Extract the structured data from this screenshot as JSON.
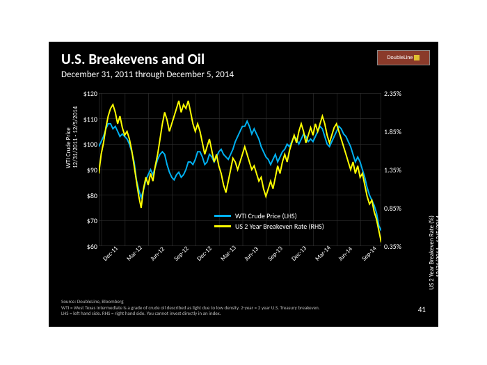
{
  "title": "U.S. Breakevens and Oil",
  "subtitle": "December 31, 2011 through December 5, 2014",
  "logo": {
    "text": "DoubleLine",
    "sub": "FUNDS"
  },
  "page_number": "41",
  "footer": {
    "source": "Source: DoubleLine, Bloomberg",
    "note1": "WTI = West Texas Intermediate is a grade of crude oil described as light due to low density. 2-year = 2 year U.S. Treasury breakeven.",
    "note2": "LHS = left hand side. RHS = right hand side. You cannot invest directly in an index."
  },
  "chart": {
    "type": "line",
    "background_color": "#000000",
    "grid_color": "#333333",
    "title_fontsize": 21,
    "subtitle_fontsize": 13,
    "axis_label_fontsize": 9,
    "tick_fontsize": 10,
    "x": {
      "ticks": [
        "Dec-11",
        "Mar-12",
        "Jun-12",
        "Sep-12",
        "Dec-12",
        "Mar-13",
        "Jun-13",
        "Sep-13",
        "Dec-13",
        "Mar-14",
        "Jun-14",
        "Sep-14"
      ],
      "label": ""
    },
    "y_left": {
      "label": "WTI Crude Price",
      "sublabel": "12/31/2011 - 12/5/2014",
      "min": 60,
      "max": 120,
      "ticks": [
        60,
        70,
        80,
        90,
        100,
        110,
        120
      ],
      "tick_prefix": "$",
      "color": "#00b0f0"
    },
    "y_right": {
      "label": "US 2 Year Breakeven Rate (%)",
      "sublabel": "12/31/2011 - 12/5/2014",
      "min": 0.35,
      "max": 2.35,
      "ticks": [
        0.35,
        0.85,
        1.35,
        1.85,
        2.35
      ],
      "tick_suffix": "%",
      "color": "#ffff00"
    },
    "series": [
      {
        "name": "WTI Crude Price (LHS)",
        "axis": "left",
        "color": "#00b0f0",
        "line_width": 2,
        "data": [
          [
            0,
            99
          ],
          [
            1,
            101
          ],
          [
            2,
            103
          ],
          [
            3,
            106
          ],
          [
            4,
            108
          ],
          [
            5,
            108
          ],
          [
            6,
            106
          ],
          [
            7,
            107
          ],
          [
            8,
            105
          ],
          [
            9,
            103
          ],
          [
            10,
            104
          ],
          [
            11,
            103
          ],
          [
            12,
            102
          ],
          [
            13,
            100
          ],
          [
            14,
            97
          ],
          [
            15,
            93
          ],
          [
            16,
            86
          ],
          [
            17,
            82
          ],
          [
            18,
            79
          ],
          [
            19,
            82
          ],
          [
            20,
            86
          ],
          [
            21,
            88
          ],
          [
            22,
            90
          ],
          [
            23,
            88
          ],
          [
            24,
            91
          ],
          [
            25,
            94
          ],
          [
            26,
            96
          ],
          [
            27,
            97
          ],
          [
            28,
            96
          ],
          [
            29,
            92
          ],
          [
            30,
            89
          ],
          [
            31,
            87
          ],
          [
            32,
            86
          ],
          [
            33,
            88
          ],
          [
            34,
            89
          ],
          [
            35,
            87
          ],
          [
            36,
            88
          ],
          [
            37,
            90
          ],
          [
            38,
            93
          ],
          [
            39,
            93
          ],
          [
            40,
            92
          ],
          [
            41,
            94
          ],
          [
            42,
            97
          ],
          [
            43,
            97
          ],
          [
            44,
            95
          ],
          [
            45,
            92
          ],
          [
            46,
            93
          ],
          [
            47,
            96
          ],
          [
            48,
            95
          ],
          [
            49,
            93
          ],
          [
            50,
            95
          ],
          [
            51,
            97
          ],
          [
            52,
            98
          ],
          [
            53,
            96
          ],
          [
            54,
            95
          ],
          [
            55,
            94
          ],
          [
            56,
            96
          ],
          [
            57,
            98
          ],
          [
            58,
            101
          ],
          [
            59,
            103
          ],
          [
            60,
            105
          ],
          [
            61,
            107
          ],
          [
            62,
            107
          ],
          [
            63,
            109
          ],
          [
            64,
            107
          ],
          [
            65,
            104
          ],
          [
            66,
            106
          ],
          [
            67,
            104
          ],
          [
            68,
            102
          ],
          [
            69,
            99
          ],
          [
            70,
            97
          ],
          [
            71,
            95
          ],
          [
            72,
            94
          ],
          [
            73,
            92
          ],
          [
            74,
            94
          ],
          [
            75,
            96
          ],
          [
            76,
            93
          ],
          [
            77,
            95
          ],
          [
            78,
            97
          ],
          [
            79,
            98
          ],
          [
            80,
            100
          ],
          [
            81,
            99
          ],
          [
            82,
            101
          ],
          [
            83,
            103
          ],
          [
            84,
            102
          ],
          [
            85,
            100
          ],
          [
            86,
            102
          ],
          [
            87,
            104
          ],
          [
            88,
            103
          ],
          [
            89,
            101
          ],
          [
            90,
            102
          ],
          [
            91,
            101
          ],
          [
            92,
            103
          ],
          [
            93,
            105
          ],
          [
            94,
            107
          ],
          [
            95,
            106
          ],
          [
            96,
            103
          ],
          [
            97,
            100
          ],
          [
            98,
            99
          ],
          [
            99,
            101
          ],
          [
            100,
            103
          ],
          [
            101,
            105
          ],
          [
            102,
            107
          ],
          [
            103,
            106
          ],
          [
            104,
            104
          ],
          [
            105,
            103
          ],
          [
            106,
            101
          ],
          [
            107,
            99
          ],
          [
            108,
            96
          ],
          [
            109,
            93
          ],
          [
            110,
            95
          ],
          [
            111,
            93
          ],
          [
            112,
            90
          ],
          [
            113,
            87
          ],
          [
            114,
            83
          ],
          [
            115,
            80
          ],
          [
            116,
            78
          ],
          [
            117,
            76
          ],
          [
            118,
            73
          ],
          [
            119,
            68
          ],
          [
            120,
            66
          ]
        ]
      },
      {
        "name": "US 2 Year Breakeven Rate (RHS)",
        "axis": "right",
        "color": "#ffff00",
        "line_width": 2,
        "data": [
          [
            0,
            1.3
          ],
          [
            1,
            1.55
          ],
          [
            2,
            1.7
          ],
          [
            3,
            1.9
          ],
          [
            4,
            2.05
          ],
          [
            5,
            2.15
          ],
          [
            6,
            2.2
          ],
          [
            7,
            2.1
          ],
          [
            8,
            1.95
          ],
          [
            9,
            2.05
          ],
          [
            10,
            1.9
          ],
          [
            11,
            1.8
          ],
          [
            12,
            1.85
          ],
          [
            13,
            1.75
          ],
          [
            14,
            1.6
          ],
          [
            15,
            1.4
          ],
          [
            16,
            1.2
          ],
          [
            17,
            1.0
          ],
          [
            18,
            0.85
          ],
          [
            19,
            1.1
          ],
          [
            20,
            1.25
          ],
          [
            21,
            1.15
          ],
          [
            22,
            1.3
          ],
          [
            23,
            1.2
          ],
          [
            24,
            1.4
          ],
          [
            25,
            1.55
          ],
          [
            26,
            1.75
          ],
          [
            27,
            1.95
          ],
          [
            28,
            2.1
          ],
          [
            29,
            2.0
          ],
          [
            30,
            1.85
          ],
          [
            31,
            1.95
          ],
          [
            32,
            2.05
          ],
          [
            33,
            2.15
          ],
          [
            34,
            2.25
          ],
          [
            35,
            2.1
          ],
          [
            36,
            2.2
          ],
          [
            37,
            2.15
          ],
          [
            38,
            2.25
          ],
          [
            39,
            2.1
          ],
          [
            40,
            1.95
          ],
          [
            41,
            1.85
          ],
          [
            42,
            1.95
          ],
          [
            43,
            1.85
          ],
          [
            44,
            1.7
          ],
          [
            45,
            1.55
          ],
          [
            46,
            1.65
          ],
          [
            47,
            1.75
          ],
          [
            48,
            1.6
          ],
          [
            49,
            1.45
          ],
          [
            50,
            1.55
          ],
          [
            51,
            1.4
          ],
          [
            52,
            1.3
          ],
          [
            53,
            1.15
          ],
          [
            54,
            1.05
          ],
          [
            55,
            1.2
          ],
          [
            56,
            1.35
          ],
          [
            57,
            1.5
          ],
          [
            58,
            1.45
          ],
          [
            59,
            1.35
          ],
          [
            60,
            1.45
          ],
          [
            61,
            1.55
          ],
          [
            62,
            1.65
          ],
          [
            63,
            1.55
          ],
          [
            64,
            1.45
          ],
          [
            65,
            1.35
          ],
          [
            66,
            1.4
          ],
          [
            67,
            1.3
          ],
          [
            68,
            1.2
          ],
          [
            69,
            1.25
          ],
          [
            70,
            1.1
          ],
          [
            71,
            1.0
          ],
          [
            72,
            1.1
          ],
          [
            73,
            1.2
          ],
          [
            74,
            1.1
          ],
          [
            75,
            1.25
          ],
          [
            76,
            1.4
          ],
          [
            77,
            1.3
          ],
          [
            78,
            1.45
          ],
          [
            79,
            1.55
          ],
          [
            80,
            1.45
          ],
          [
            81,
            1.6
          ],
          [
            82,
            1.7
          ],
          [
            83,
            1.8
          ],
          [
            84,
            1.7
          ],
          [
            85,
            1.85
          ],
          [
            86,
            1.95
          ],
          [
            87,
            1.85
          ],
          [
            88,
            1.7
          ],
          [
            89,
            1.8
          ],
          [
            90,
            1.9
          ],
          [
            91,
            1.8
          ],
          [
            92,
            1.95
          ],
          [
            93,
            1.85
          ],
          [
            94,
            1.95
          ],
          [
            95,
            2.05
          ],
          [
            96,
            1.95
          ],
          [
            97,
            1.8
          ],
          [
            98,
            1.7
          ],
          [
            99,
            1.8
          ],
          [
            100,
            1.9
          ],
          [
            101,
            1.95
          ],
          [
            102,
            1.85
          ],
          [
            103,
            1.75
          ],
          [
            104,
            1.65
          ],
          [
            105,
            1.55
          ],
          [
            106,
            1.45
          ],
          [
            107,
            1.35
          ],
          [
            108,
            1.45
          ],
          [
            109,
            1.3
          ],
          [
            110,
            1.4
          ],
          [
            111,
            1.25
          ],
          [
            112,
            1.3
          ],
          [
            113,
            1.15
          ],
          [
            114,
            1.0
          ],
          [
            115,
            0.9
          ],
          [
            116,
            0.95
          ],
          [
            117,
            0.8
          ],
          [
            118,
            0.7
          ],
          [
            119,
            0.55
          ],
          [
            120,
            0.4
          ]
        ]
      }
    ],
    "legend": {
      "position": "inside-bottom-center",
      "items": [
        "WTI Crude Price (LHS)",
        "US 2 Year Breakeven Rate (RHS)"
      ]
    }
  }
}
